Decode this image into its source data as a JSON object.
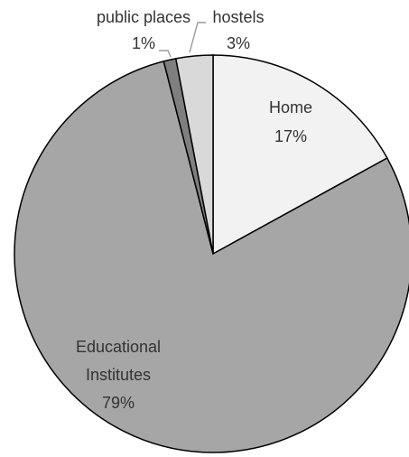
{
  "chart_data": {
    "type": "pie",
    "title": "",
    "slices": [
      {
        "label": "Home",
        "value": 17,
        "value_label": "17%",
        "color": "#f2f2f2"
      },
      {
        "label": "Educational Institutes",
        "value": 79,
        "value_label": "79%",
        "color": "#a6a6a6"
      },
      {
        "label": "public places",
        "value": 1,
        "value_label": "1%",
        "color": "#7f7f7f"
      },
      {
        "label": "hostels",
        "value": 3,
        "value_label": "3%",
        "color": "#d9d9d9"
      }
    ],
    "start_angle": "12 o'clock",
    "direction": "clockwise",
    "legend": "none"
  }
}
